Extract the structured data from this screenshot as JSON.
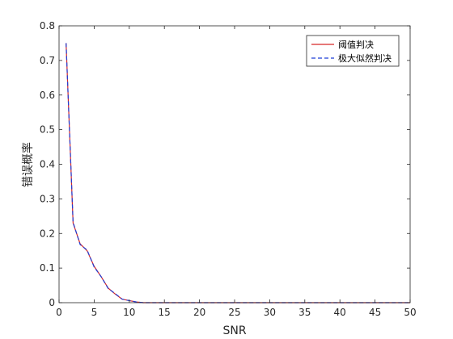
{
  "chart_data": {
    "type": "line",
    "xlabel": "SNR",
    "ylabel": "错误概率",
    "xlim": [
      0,
      50
    ],
    "ylim": [
      0,
      0.8
    ],
    "xticks": [
      "0",
      "5",
      "10",
      "15",
      "20",
      "25",
      "30",
      "35",
      "40",
      "45",
      "50"
    ],
    "yticks": [
      "0",
      "0.1",
      "0.2",
      "0.3",
      "0.4",
      "0.5",
      "0.6",
      "0.7",
      "0.8"
    ],
    "grid": false,
    "legend_position": "top-right",
    "x": [
      1,
      2,
      3,
      4,
      5,
      6,
      7,
      8,
      9,
      10,
      11,
      12,
      13,
      14,
      15,
      16,
      17,
      18,
      19,
      20,
      21,
      22,
      23,
      24,
      25,
      26,
      27,
      28,
      29,
      30,
      31,
      32,
      33,
      34,
      35,
      36,
      37,
      38,
      39,
      40,
      41,
      42,
      43,
      44,
      45,
      46,
      47,
      48,
      49,
      50
    ],
    "series": [
      {
        "name": "阈值判决",
        "color": "#d62728",
        "dash": "solid",
        "values": [
          0.75,
          0.23,
          0.17,
          0.15,
          0.105,
          0.075,
          0.042,
          0.025,
          0.01,
          0.006,
          0.002,
          0,
          0,
          0,
          0,
          0,
          0,
          0,
          0,
          0,
          0,
          0,
          0,
          0,
          0,
          0,
          0,
          0,
          0,
          0,
          0,
          0,
          0,
          0,
          0,
          0,
          0,
          0,
          0,
          0,
          0,
          0,
          0,
          0,
          0,
          0,
          0,
          0,
          0,
          0
        ]
      },
      {
        "name": "极大似然判决",
        "color": "#1f3fd6",
        "dash": "dashed",
        "values": [
          0.75,
          0.232,
          0.168,
          0.152,
          0.103,
          0.075,
          0.041,
          0.026,
          0.01,
          0.006,
          0.002,
          0,
          0,
          0,
          0,
          0,
          0,
          0,
          0,
          0,
          0,
          0,
          0,
          0,
          0,
          0,
          0,
          0,
          0,
          0,
          0,
          0,
          0,
          0,
          0,
          0,
          0,
          0,
          0,
          0,
          0,
          0,
          0,
          0,
          0,
          0,
          0,
          0,
          0,
          0
        ]
      }
    ]
  }
}
